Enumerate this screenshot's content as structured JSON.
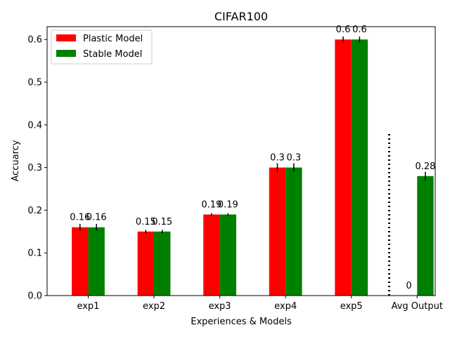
{
  "chart_data": {
    "type": "bar",
    "title": "CIFAR100",
    "xlabel": "Experiences & Models",
    "ylabel": "Accuarcy",
    "categories": [
      "exp1",
      "exp2",
      "exp3",
      "exp4",
      "exp5",
      "Avg Output"
    ],
    "ylim": [
      0,
      0.63
    ],
    "yticks": [
      "0.0",
      "0.1",
      "0.2",
      "0.3",
      "0.4",
      "0.5",
      "0.6"
    ],
    "grid": false,
    "legend_position": "top-left",
    "series": [
      {
        "name": "Plastic Model",
        "color": "#ff0000",
        "values": [
          0.16,
          0.15,
          0.19,
          0.3,
          0.6,
          0
        ],
        "errors": [
          0.008,
          0.004,
          0.003,
          0.01,
          0.007,
          0
        ],
        "labels": [
          "0.16",
          "0.15",
          "0.19",
          "0.3",
          "0.6",
          "0"
        ]
      },
      {
        "name": "Stable Model",
        "color": "#008000",
        "values": [
          0.16,
          0.15,
          0.19,
          0.3,
          0.6,
          0.28
        ],
        "errors": [
          0.008,
          0.004,
          0.003,
          0.01,
          0.007,
          0.01
        ],
        "labels": [
          "0.16",
          "0.15",
          "0.19",
          "0.3",
          "0.6",
          "0.28"
        ]
      }
    ],
    "separator": {
      "style": "dotted",
      "ymax": 0.38
    }
  }
}
